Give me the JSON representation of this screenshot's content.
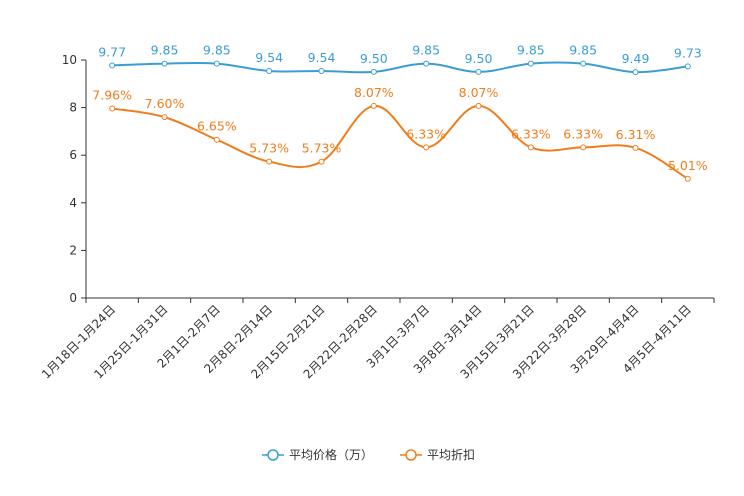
{
  "chart_data": {
    "type": "line",
    "title": "",
    "xlabel": "",
    "ylabel": "",
    "ylim": [
      0,
      10
    ],
    "yticks": [
      0,
      2,
      4,
      6,
      8,
      10
    ],
    "grid": false,
    "legend_position": "bottom-center",
    "categories": [
      "1月18日-1月24日",
      "1月25日-1月31日",
      "2月1日-2月7日",
      "2月8日-2月14日",
      "2月15日-2月21日",
      "2月22日-2月28日",
      "3月1日-3月7日",
      "3月8日-3月14日",
      "3月15日-3月21日",
      "3月22日-3月28日",
      "3月29日-4月4日",
      "4月5日-4月11日"
    ],
    "series": [
      {
        "name": "平均价格（万）",
        "color": "#3a9ed4",
        "values": [
          9.77,
          9.85,
          9.85,
          9.54,
          9.54,
          9.5,
          9.85,
          9.5,
          9.85,
          9.85,
          9.49,
          9.73
        ],
        "labels": [
          "9.77",
          "9.85",
          "9.85",
          "9.54",
          "9.54",
          "9.50",
          "9.85",
          "9.50",
          "9.85",
          "9.85",
          "9.49",
          "9.73"
        ]
      },
      {
        "name": "平均折扣",
        "color": "#f07d1b",
        "values": [
          7.96,
          7.6,
          6.65,
          5.73,
          5.73,
          8.07,
          6.33,
          8.07,
          6.33,
          6.33,
          6.31,
          5.01
        ],
        "labels": [
          "7.96%",
          "7.60%",
          "6.65%",
          "5.73%",
          "5.73%",
          "8.07%",
          "6.33%",
          "8.07%",
          "6.33%",
          "6.33%",
          "6.31%",
          "5.01%"
        ]
      }
    ]
  }
}
